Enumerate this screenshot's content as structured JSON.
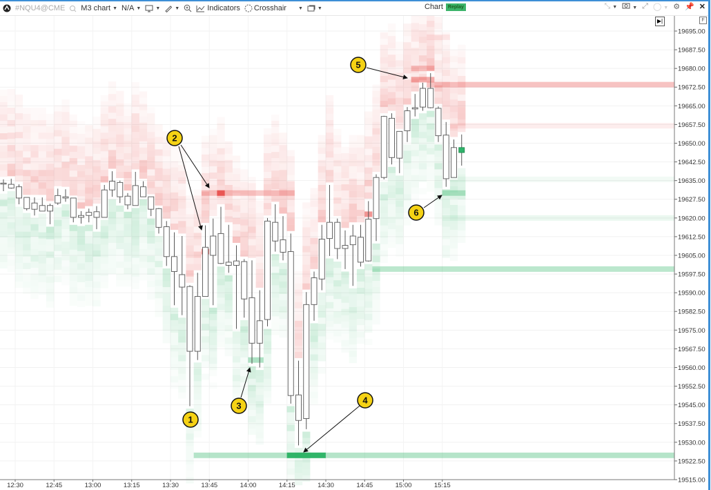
{
  "toolbar": {
    "symbol": "#NQU4@CME",
    "chart_type": "M3 chart",
    "template": "N/A",
    "indicators_label": "Indicators",
    "crosshair_label": "Crosshair",
    "title": "Chart",
    "replay_badge": "Replay",
    "icons": [
      "logo-icon",
      "search-icon",
      "monitor-icon",
      "pencil-icon",
      "zoom-icon",
      "indicators-icon",
      "crosshair-icon",
      "window-icon",
      "collapse-icon",
      "camera-icon",
      "expand-icon",
      "circle-icon",
      "gear-icon",
      "pin-icon",
      "close-icon"
    ]
  },
  "chart_controls": {
    "goto_end": "▶|",
    "f_button": "F"
  },
  "colors": {
    "ask_heat": "#e53935",
    "bid_heat": "#1fae5b",
    "candle_border": "#555555",
    "badge": "#f5d214",
    "last_candle": "#2fb36b"
  },
  "chart_data": {
    "type": "candlestick-heatmap",
    "timeframe": "3 minutes",
    "yticks": [
      "19695.00",
      "19687.50",
      "19680.00",
      "19672.50",
      "19665.00",
      "19657.50",
      "19650.00",
      "19642.50",
      "19635.00",
      "19627.50",
      "19620.00",
      "19612.50",
      "19605.00",
      "19597.50",
      "19590.00",
      "19582.50",
      "19575.00",
      "19567.50",
      "19560.00",
      "19552.50",
      "19545.00",
      "19537.50",
      "19530.00",
      "19522.50",
      "19515.00"
    ],
    "ylim": [
      19515,
      19695
    ],
    "xticks": [
      "12:30",
      "12:45",
      "13:00",
      "13:15",
      "13:30",
      "13:45",
      "14:00",
      "14:15",
      "14:30",
      "14:45",
      "15:00",
      "15:15"
    ],
    "grid": true,
    "candles": [
      [
        19634,
        19635.5,
        19630.75,
        19633.75
      ],
      [
        19633.5,
        19635.75,
        19631.75,
        19632
      ],
      [
        19632.5,
        19633.5,
        19625.5,
        19628
      ],
      [
        19628.25,
        19628.25,
        19623,
        19623.75
      ],
      [
        19623.5,
        19628.25,
        19621,
        19626
      ],
      [
        19625,
        19628.25,
        19622.75,
        19622.75
      ],
      [
        19622.75,
        19625.75,
        19617.5,
        19625
      ],
      [
        19626,
        19631.75,
        19625.25,
        19629
      ],
      [
        19628.5,
        19631.5,
        19626.5,
        19628
      ],
      [
        19628,
        19628,
        19618.25,
        19620.25
      ],
      [
        19620.25,
        19622.75,
        19617.75,
        19621
      ],
      [
        19621,
        19623.75,
        19618.25,
        19622.25
      ],
      [
        19622.5,
        19624.75,
        19615.5,
        19620.25
      ],
      [
        19620.25,
        19633.25,
        19620.25,
        19631.25
      ],
      [
        19631.25,
        19638.75,
        19628.5,
        19634.75
      ],
      [
        19634.25,
        19635,
        19626,
        19628.5
      ],
      [
        19628.75,
        19630,
        19623.5,
        19625.25
      ],
      [
        19625,
        19638.5,
        19625,
        19633
      ],
      [
        19632.5,
        19634.75,
        19628.5,
        19628.5
      ],
      [
        19628.5,
        19628.5,
        19620.75,
        19623.5
      ],
      [
        19623.75,
        19624,
        19613.75,
        19616.25
      ],
      [
        19616.5,
        19618.75,
        19600.75,
        19604.5
      ],
      [
        19604.5,
        19614.25,
        19585,
        19598.5
      ],
      [
        19597.25,
        19612.75,
        19581,
        19592.25
      ],
      [
        19592.5,
        19593,
        19544.5,
        19566.5
      ],
      [
        19566.5,
        19598,
        19563,
        19588.5
      ],
      [
        19588.5,
        19617,
        19588.5,
        19608.25
      ],
      [
        19605,
        19619.75,
        19585,
        19612.75
      ],
      [
        19613.75,
        19624.5,
        19601.5,
        19601.75
      ],
      [
        19601,
        19617.25,
        19598,
        19602.25
      ],
      [
        19602.75,
        19609,
        19575.5,
        19601
      ],
      [
        19602.5,
        19603.5,
        19580,
        19587.5
      ],
      [
        19588,
        19603,
        19561.5,
        19569.75
      ],
      [
        19569.75,
        19591,
        19560,
        19578.75
      ],
      [
        19579.25,
        19620,
        19576.5,
        19618.75
      ],
      [
        19618.25,
        19625.5,
        19606.5,
        19610.75
      ],
      [
        19611.25,
        19620.75,
        19603,
        19606.25
      ],
      [
        19606.5,
        19613.75,
        19545.5,
        19548.75
      ],
      [
        19549,
        19562.75,
        19528.75,
        19538.75
      ],
      [
        19539.5,
        19590.25,
        19535.25,
        19585.25
      ],
      [
        19585.25,
        19598.5,
        19578.75,
        19596
      ],
      [
        19595.5,
        19617.25,
        19591,
        19611.5
      ],
      [
        19611.75,
        19633.25,
        19604.75,
        19618.25
      ],
      [
        19618.25,
        19619.75,
        19603.5,
        19607.75
      ],
      [
        19607.75,
        19615,
        19599.5,
        19609
      ],
      [
        19609.25,
        19617.25,
        19592.75,
        19612.75
      ],
      [
        19612.25,
        19617.25,
        19600.5,
        19602.25
      ],
      [
        19602.75,
        19626.75,
        19602.5,
        19619.5
      ],
      [
        19619.75,
        19637.5,
        19610.75,
        19636.25
      ],
      [
        19636.25,
        19661,
        19635.5,
        19660.75
      ],
      [
        19660,
        19662,
        19641.5,
        19644.25
      ],
      [
        19644,
        19654.75,
        19638,
        19654.75
      ],
      [
        19655,
        19664.5,
        19650.5,
        19663
      ],
      [
        19663.75,
        19669.75,
        19660.75,
        19664.25
      ],
      [
        19664.5,
        19674.25,
        19663,
        19672
      ],
      [
        19672,
        19678.1,
        19664,
        19664.25
      ],
      [
        19664,
        19664.75,
        19650.5,
        19653
      ],
      [
        19653.25,
        19658.5,
        19632.5,
        19635.75
      ],
      [
        19636.25,
        19651.5,
        19636.25,
        19648.25
      ],
      [
        19648.25,
        19653.5,
        19641,
        19646.25
      ]
    ],
    "candle_fields": [
      "open",
      "high",
      "low",
      "close"
    ],
    "first_candle_time": "12:27",
    "liquidity_levels": [
      {
        "side": "bid",
        "price": 19524.75,
        "from_candle": 25,
        "intensity": 0.55,
        "peak_from": 37,
        "peak_to": 41
      },
      {
        "side": "bid",
        "price": 19599.5,
        "from_candle": 48,
        "intensity": 0.5
      },
      {
        "side": "bid",
        "price": 19630,
        "from_candle": 57,
        "to_candle": 59,
        "intensity": 0.5
      },
      {
        "side": "bid",
        "price": 19620,
        "from_candle": 57,
        "intensity": 0.15
      },
      {
        "side": "bid",
        "price": 19635.5,
        "from_candle": 58,
        "intensity": 0.1
      },
      {
        "side": "bid",
        "price": 19563,
        "from_candle": 32,
        "to_candle": 33,
        "intensity": 0.6
      },
      {
        "side": "ask",
        "price": 19673.5,
        "from_candle": 55,
        "intensity": 0.5
      },
      {
        "side": "ask",
        "price": 19657,
        "from_candle": 58,
        "intensity": 0.15
      },
      {
        "side": "ask",
        "price": 19630,
        "from_candle": 26,
        "to_candle": 37,
        "intensity": 0.45,
        "peak_from": 28,
        "peak_to": 28
      },
      {
        "side": "ask",
        "price": 19606.5,
        "from_candle": 26,
        "to_candle": 26,
        "intensity": 0.9
      },
      {
        "side": "ask",
        "price": 19621.5,
        "from_candle": 47,
        "to_candle": 47,
        "intensity": 0.9
      },
      {
        "side": "ask",
        "price": 19675.5,
        "from_candle": 53,
        "to_candle": 55,
        "intensity": 0.7
      },
      {
        "side": "ask",
        "price": 19680,
        "from_candle": 53,
        "to_candle": 55,
        "intensity": 0.45
      },
      {
        "side": "ask",
        "price": 19692.5,
        "from_candle": 55,
        "to_candle": 57,
        "intensity": 0.15
      }
    ],
    "annotations": [
      "1",
      "2",
      "3",
      "4",
      "5",
      "6"
    ]
  }
}
